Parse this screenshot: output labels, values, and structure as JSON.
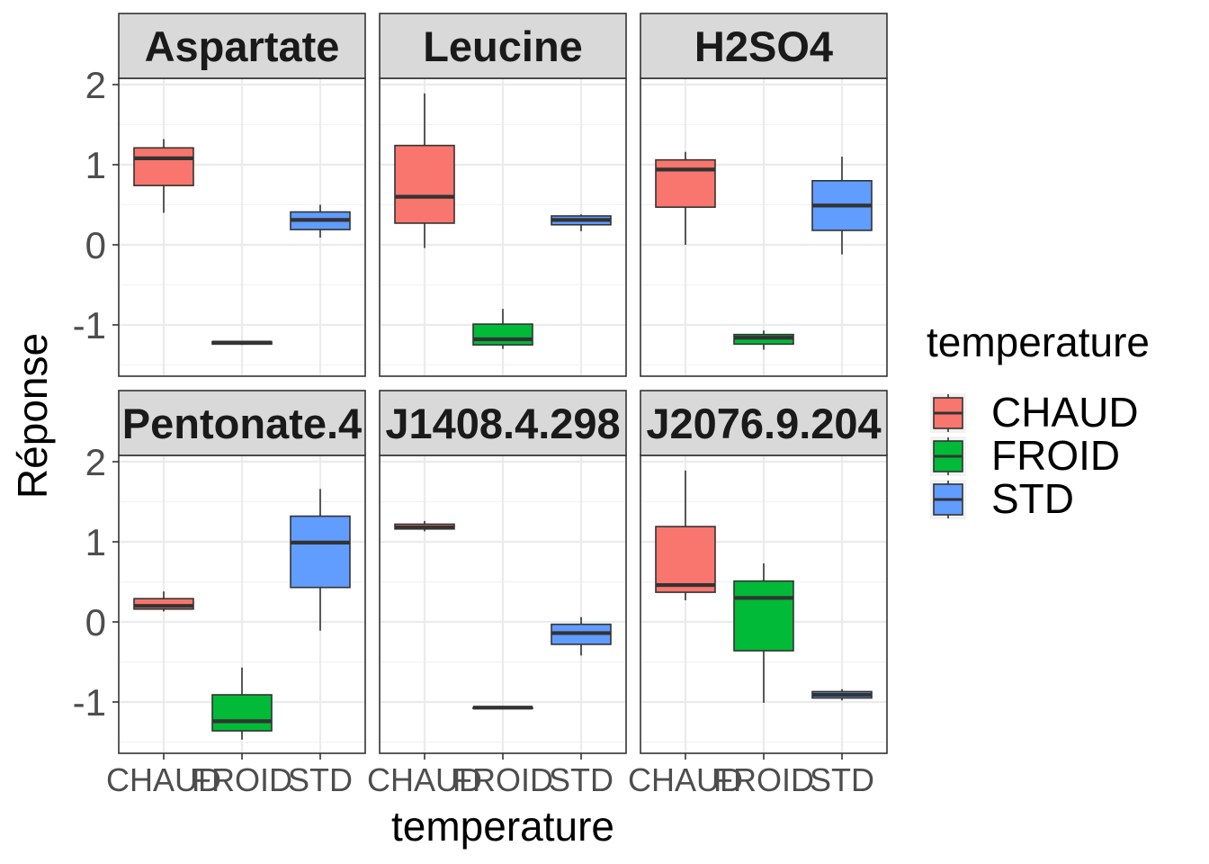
{
  "chart_data": {
    "type": "boxplot",
    "facet_by": "compound",
    "xlabel": "temperature",
    "ylabel": "Réponse",
    "categories": [
      "CHAUD",
      "FROID",
      "STD"
    ],
    "ylim": [
      -1.6,
      2.2
    ],
    "yticks": [
      2,
      1,
      0,
      -1
    ],
    "ytick_labels": [
      "2",
      "1",
      "0",
      "-1"
    ],
    "grid": true,
    "legend": {
      "title": "temperature",
      "position": "right",
      "entries": [
        "CHAUD",
        "FROID",
        "STD"
      ]
    },
    "colors": {
      "CHAUD": "#F8766D",
      "FROID": "#00BA38",
      "STD": "#619CFF"
    },
    "facets": [
      {
        "label": "Aspartate",
        "boxes": [
          {
            "group": "CHAUD",
            "min": 0.4,
            "q1": 0.74,
            "median": 1.08,
            "q3": 1.21,
            "max": 1.32
          },
          {
            "group": "FROID",
            "min": -1.25,
            "q1": -1.24,
            "median": -1.22,
            "q3": -1.21,
            "max": -1.2
          },
          {
            "group": "STD",
            "min": 0.09,
            "q1": 0.19,
            "median": 0.31,
            "q3": 0.41,
            "max": 0.5
          }
        ]
      },
      {
        "label": "Leucine",
        "boxes": [
          {
            "group": "CHAUD",
            "min": -0.04,
            "q1": 0.27,
            "median": 0.6,
            "q3": 1.24,
            "max": 1.89
          },
          {
            "group": "FROID",
            "min": -1.3,
            "q1": -1.25,
            "median": -1.18,
            "q3": -0.99,
            "max": -0.8
          },
          {
            "group": "STD",
            "min": 0.17,
            "q1": 0.25,
            "median": 0.31,
            "q3": 0.36,
            "max": 0.38
          }
        ]
      },
      {
        "label": "H2SO4",
        "boxes": [
          {
            "group": "CHAUD",
            "min": 0.0,
            "q1": 0.47,
            "median": 0.94,
            "q3": 1.06,
            "max": 1.16
          },
          {
            "group": "FROID",
            "min": -1.31,
            "q1": -1.24,
            "median": -1.16,
            "q3": -1.12,
            "max": -1.07
          },
          {
            "group": "STD",
            "min": -0.12,
            "q1": 0.18,
            "median": 0.49,
            "q3": 0.8,
            "max": 1.1
          }
        ]
      },
      {
        "label": "Pentonate.4",
        "boxes": [
          {
            "group": "CHAUD",
            "min": 0.13,
            "q1": 0.16,
            "median": 0.2,
            "q3": 0.29,
            "max": 0.38
          },
          {
            "group": "FROID",
            "min": -1.47,
            "q1": -1.36,
            "median": -1.24,
            "q3": -0.91,
            "max": -0.57
          },
          {
            "group": "STD",
            "min": -0.11,
            "q1": 0.43,
            "median": 0.99,
            "q3": 1.32,
            "max": 1.66
          }
        ]
      },
      {
        "label": "J1408.4.298",
        "boxes": [
          {
            "group": "CHAUD",
            "min": 1.13,
            "q1": 1.16,
            "median": 1.18,
            "q3": 1.22,
            "max": 1.26
          },
          {
            "group": "FROID",
            "min": -1.08,
            "q1": -1.08,
            "median": -1.07,
            "q3": -1.07,
            "max": -1.06
          },
          {
            "group": "STD",
            "min": -0.42,
            "q1": -0.28,
            "median": -0.14,
            "q3": -0.03,
            "max": 0.06
          }
        ]
      },
      {
        "label": "J2076.9.204",
        "boxes": [
          {
            "group": "CHAUD",
            "min": 0.27,
            "q1": 0.37,
            "median": 0.46,
            "q3": 1.19,
            "max": 1.89
          },
          {
            "group": "FROID",
            "min": -1.01,
            "q1": -0.36,
            "median": 0.3,
            "q3": 0.51,
            "max": 0.73
          },
          {
            "group": "STD",
            "min": -0.98,
            "q1": -0.95,
            "median": -0.91,
            "q3": -0.87,
            "max": -0.84
          }
        ]
      }
    ]
  }
}
